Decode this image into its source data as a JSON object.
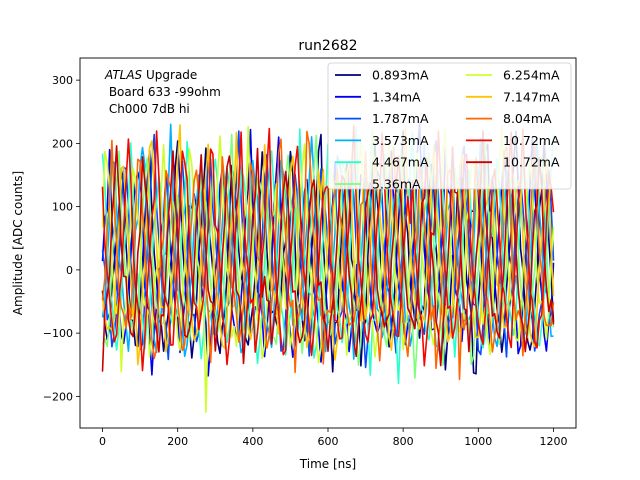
{
  "chart_data": {
    "type": "line",
    "title": "run2682",
    "xlabel": "Time [ns]",
    "ylabel": "Amplitude [ADC counts]",
    "xlim": [
      -60,
      1260
    ],
    "ylim": [
      -250,
      335
    ],
    "xticks": [
      0,
      200,
      400,
      600,
      800,
      1000,
      1200
    ],
    "yticks": [
      -200,
      -100,
      0,
      100,
      200,
      300
    ],
    "grid": false,
    "legend_position": "top-right",
    "legend_columns": 2,
    "annotation": {
      "line1_italic": "ATLAS",
      "line1_rest": " Upgrade",
      "line2": " Board 633 -99ohm",
      "line3": " Ch000 7dB hi"
    },
    "series": [
      {
        "name": "0.893mA",
        "color": "#00007f"
      },
      {
        "name": "1.34mA",
        "color": "#0000f1"
      },
      {
        "name": "1.787mA",
        "color": "#004cff"
      },
      {
        "name": "3.573mA",
        "color": "#00b0ff"
      },
      {
        "name": "4.467mA",
        "color": "#29ffce"
      },
      {
        "name": "5.36mA",
        "color": "#7dff7a"
      },
      {
        "name": "6.254mA",
        "color": "#ceff29"
      },
      {
        "name": "7.147mA",
        "color": "#ffc400"
      },
      {
        "name": "8.04mA",
        "color": "#ff6800"
      },
      {
        "name": "10.72mA",
        "color": "#f10800"
      },
      {
        "name": "10.72mA",
        "color": "#c80000"
      }
    ],
    "sample_period_ns": 6.25,
    "n_samples": 193,
    "waveform_pattern": [
      -60,
      -85,
      -125,
      -100,
      -60,
      10,
      80,
      150,
      185,
      120,
      40,
      -20
    ],
    "waveform_jitter": 40
  }
}
